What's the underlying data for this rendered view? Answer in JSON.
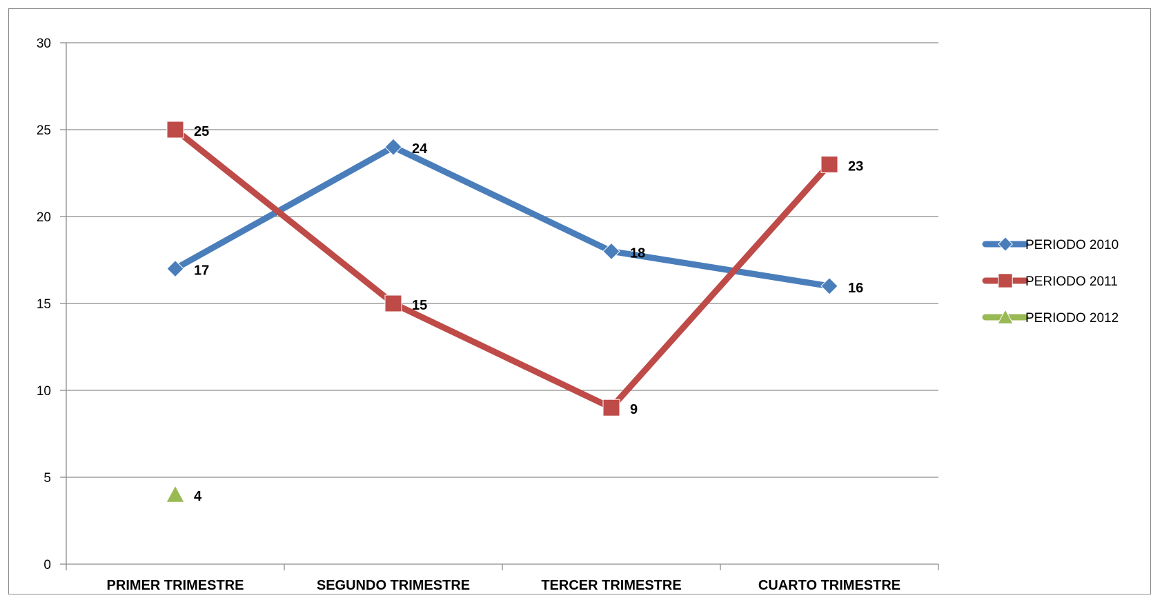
{
  "chart_data": {
    "type": "line",
    "categories": [
      "PRIMER TRIMESTRE",
      "SEGUNDO TRIMESTRE",
      "TERCER TRIMESTRE",
      "CUARTO TRIMESTRE"
    ],
    "series": [
      {
        "name": "PERIODO 2010",
        "values": [
          17,
          24,
          18,
          16
        ],
        "color": "#4a7ebb",
        "marker": "diamond"
      },
      {
        "name": "PERIODO 2011",
        "values": [
          25,
          15,
          9,
          23
        ],
        "color": "#be4b48",
        "marker": "square"
      },
      {
        "name": "PERIODO 2012",
        "values": [
          4,
          null,
          null,
          null
        ],
        "color": "#98b954",
        "marker": "triangle"
      }
    ],
    "ylim": [
      0,
      30
    ],
    "yticks": [
      "0",
      "5",
      "10",
      "15",
      "20",
      "25",
      "30"
    ],
    "grid": true,
    "legend": "right",
    "data_labels": true
  }
}
